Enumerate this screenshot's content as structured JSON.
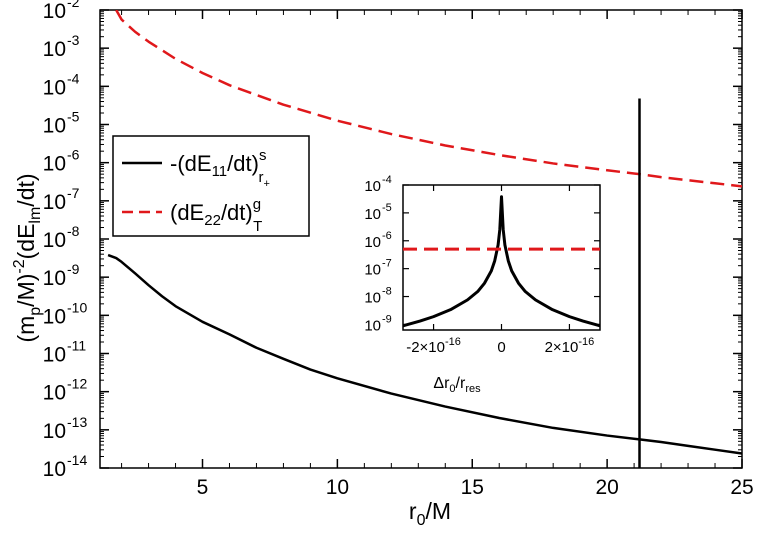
{
  "chart_data": {
    "type": "line",
    "xlabel": "r0/M",
    "xlabel_parts": {
      "base": "r",
      "sub": "0",
      "rest": "/M"
    },
    "ylabel_parts": [
      "(m",
      "p",
      "/M)",
      "-2",
      "(dE",
      "lm",
      "/dt)"
    ],
    "xlim": [
      1.2,
      25
    ],
    "ylim_log10": [
      -14,
      -2
    ],
    "x_ticks": [
      5,
      10,
      15,
      20,
      25
    ],
    "y_ticks_exponents": [
      -14,
      -13,
      -12,
      -11,
      -10,
      -9,
      -8,
      -7,
      -6,
      -5,
      -4,
      -3,
      -2
    ],
    "y_tick_base": "10",
    "legend_position": "middle-left",
    "series": [
      {
        "name": "-(dE11/dt)^s_r+",
        "legend_parts": {
          "a": "-(dE",
          "b": "11",
          "c": "/dt)",
          "sup": "s",
          "sub": "r",
          "subsub": "+"
        },
        "color": "#000000",
        "style": "solid",
        "x": [
          1.5,
          1.8,
          2,
          2.5,
          3,
          3.5,
          4,
          5,
          6,
          7,
          8,
          9,
          10,
          12,
          14,
          16,
          18,
          20,
          21.2,
          22,
          23,
          24,
          25
        ],
        "log10y": [
          -8.42,
          -8.5,
          -8.6,
          -8.9,
          -9.21,
          -9.5,
          -9.76,
          -10.17,
          -10.5,
          -10.85,
          -11.14,
          -11.42,
          -11.65,
          -12.05,
          -12.39,
          -12.69,
          -12.95,
          -13.15,
          -13.25,
          -13.32,
          -13.42,
          -13.52,
          -13.62
        ]
      },
      {
        "name": "(dE22/dt)^g_T",
        "legend_parts": {
          "a": "(dE",
          "b": "22",
          "c": "/dt)",
          "sup": "g",
          "sub": "T"
        },
        "color": "#e0181b",
        "style": "dashed",
        "x": [
          1.8,
          2,
          2.5,
          3,
          4,
          5,
          6,
          8,
          10,
          12,
          14,
          16,
          18,
          20,
          21.2,
          22,
          23,
          24,
          25
        ],
        "log10y": [
          -2.0,
          -2.25,
          -2.57,
          -2.83,
          -3.28,
          -3.65,
          -3.97,
          -4.48,
          -4.9,
          -5.25,
          -5.55,
          -5.8,
          -6.02,
          -6.2,
          -6.3,
          -6.38,
          -6.46,
          -6.54,
          -6.62
        ]
      },
      {
        "name": "resonance spike",
        "color": "#000000",
        "style": "solid",
        "x": [
          21.2,
          21.2
        ],
        "log10y": [
          -14,
          -4.32
        ]
      }
    ],
    "inset": {
      "xlabel_parts": {
        "a": "Δr",
        "b": "0",
        "c": "/r",
        "d": "res"
      },
      "xlim": [
        -2.9e-16,
        2.9e-16
      ],
      "ylim_log10": [
        -9.2,
        -4
      ],
      "x_tick_values": [
        -2e-16,
        0,
        2e-16
      ],
      "x_tick_labels": [
        {
          "mant": "-2×10",
          "exp": "-16"
        },
        {
          "mant": "0",
          "exp": ""
        },
        {
          "mant": "2×10",
          "exp": "-16"
        }
      ],
      "y_ticks_exponents": [
        -9,
        -8,
        -7,
        -6,
        -5,
        -4
      ],
      "series": [
        {
          "name": "-(dE11/dt)^s_r+ (resonance)",
          "color": "#000000",
          "style": "solid",
          "x": [
            -2.9e-16,
            -2.4e-16,
            -2e-16,
            -1.5e-16,
            -1e-16,
            -7e-17,
            -5e-17,
            -3e-17,
            -2e-17,
            -1e-17,
            -5e-18,
            0,
            5e-18,
            1e-17,
            2e-17,
            3e-17,
            5e-17,
            7e-17,
            1e-16,
            1.5e-16,
            2e-16,
            2.4e-16,
            2.9e-16
          ],
          "log10y": [
            -9.05,
            -8.88,
            -8.72,
            -8.47,
            -8.12,
            -7.82,
            -7.52,
            -7.08,
            -6.72,
            -6.15,
            -5.6,
            -4.42,
            -5.6,
            -6.15,
            -6.72,
            -7.08,
            -7.52,
            -7.82,
            -8.12,
            -8.47,
            -8.72,
            -8.88,
            -9.05
          ]
        },
        {
          "name": "(dE22/dt)^g_T (level)",
          "color": "#e0181b",
          "style": "dashed",
          "x": [
            -2.9e-16,
            2.9e-16
          ],
          "log10y": [
            -6.3,
            -6.3
          ]
        }
      ]
    }
  }
}
